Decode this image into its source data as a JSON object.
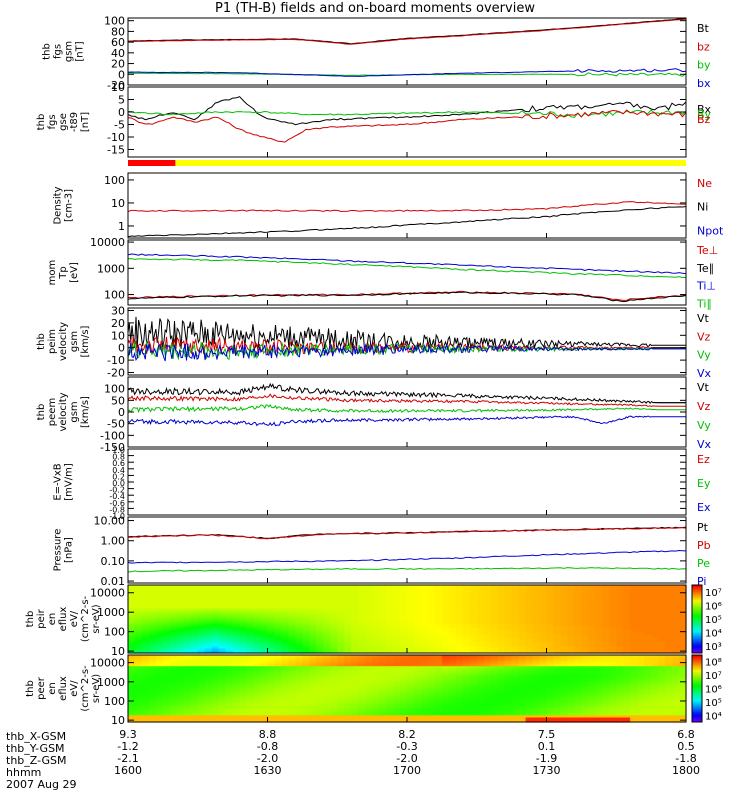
{
  "title": "P1 (TH-B) fields and on-board moments overview",
  "colors": {
    "black": "#000000",
    "red": "#d00000",
    "green": "#00c000",
    "blue": "#0000d0",
    "bar_red": "#ff0000",
    "bar_yellow": "#ffff00"
  },
  "chart_data": [
    {
      "type": "line",
      "ylabel": [
        "thb",
        "fgs",
        "gsm",
        "[nT]"
      ],
      "ylim": [
        -20,
        105
      ],
      "yticks": [
        "100",
        "80",
        "60",
        "40",
        "20",
        "0",
        "-20"
      ],
      "ytick_values": [
        100,
        80,
        60,
        40,
        20,
        0,
        -20
      ],
      "legend": [
        {
          "text": "Bt",
          "color": "black"
        },
        {
          "text": "bz",
          "color": "red"
        },
        {
          "text": "by",
          "color": "green"
        },
        {
          "text": "bx",
          "color": "blue"
        }
      ],
      "series": [
        {
          "name": "Bt",
          "color": "black",
          "x": [
            0,
            10,
            30,
            40,
            50,
            60,
            75,
            100
          ],
          "y": [
            62,
            64,
            66,
            57,
            67,
            73,
            83,
            104
          ]
        },
        {
          "name": "bz",
          "color": "red",
          "x": [
            0,
            10,
            30,
            40,
            50,
            60,
            75,
            100
          ],
          "y": [
            61,
            63,
            65,
            56,
            66,
            72,
            82,
            103
          ]
        },
        {
          "name": "by",
          "color": "green",
          "x": [
            0,
            20,
            40,
            60,
            80,
            100
          ],
          "y": [
            2,
            1,
            -2,
            0,
            0,
            -1
          ]
        },
        {
          "name": "bx",
          "color": "blue",
          "x": [
            0,
            20,
            40,
            60,
            80,
            100
          ],
          "y": [
            4,
            3,
            -4,
            2,
            6,
            8
          ]
        }
      ]
    },
    {
      "type": "line",
      "ylabel": [
        "thb",
        "fgs",
        "gse",
        "-t89",
        "[nT]"
      ],
      "ylim": [
        -18,
        10
      ],
      "yticks": [
        "10",
        "5",
        "0",
        "-5",
        "-10",
        "-15"
      ],
      "ytick_values": [
        10,
        5,
        0,
        -5,
        -10,
        -15
      ],
      "legend": [
        {
          "text": "Bx",
          "color": "black"
        },
        {
          "text": "By",
          "color": "green"
        },
        {
          "text": "Bz",
          "color": "red"
        }
      ],
      "series": [
        {
          "name": "Bx",
          "color": "black",
          "x": [
            0,
            3,
            8,
            12,
            16,
            20,
            24,
            30,
            36,
            50,
            60,
            70,
            80,
            90,
            95,
            100
          ],
          "y": [
            -1,
            -3,
            0,
            -3,
            4,
            6,
            -2,
            -5,
            -3,
            -2,
            -1,
            1,
            2,
            3,
            1,
            4
          ]
        },
        {
          "name": "By",
          "color": "green",
          "x": [
            0,
            8,
            16,
            24,
            32,
            40,
            60,
            80,
            100
          ],
          "y": [
            0,
            -1,
            0,
            0,
            -1,
            -1,
            0,
            -1,
            0
          ]
        },
        {
          "name": "Bz",
          "color": "red",
          "x": [
            0,
            2,
            4,
            8,
            12,
            16,
            20,
            24,
            28,
            32,
            36,
            50,
            60,
            70,
            80,
            90,
            100
          ],
          "y": [
            -2,
            -4,
            -5,
            -2,
            -4,
            -2,
            -7,
            -10,
            -12,
            -7,
            -6,
            -5,
            -3,
            -2,
            -1,
            0,
            -1
          ]
        }
      ]
    },
    {
      "type": "bar_strip",
      "segments": [
        {
          "x0": 0,
          "x1": 8.5,
          "color": "bar_red"
        },
        {
          "x0": 8.5,
          "x1": 100,
          "color": "bar_yellow"
        }
      ]
    },
    {
      "type": "line",
      "scale": "log",
      "ylabel": [
        "Density",
        "[cm-3]"
      ],
      "ylim": [
        0.3,
        200
      ],
      "yticks": [
        "100",
        "10",
        "1"
      ],
      "ytick_values": [
        100,
        10,
        1
      ],
      "legend": [
        {
          "text": "Ne",
          "color": "red"
        },
        {
          "text": "Ni",
          "color": "black"
        },
        {
          "text": "Npot",
          "color": "blue"
        }
      ],
      "series": [
        {
          "name": "Ne",
          "color": "red",
          "x": [
            0,
            20,
            40,
            60,
            75,
            85,
            90,
            100
          ],
          "y": [
            4.5,
            4.7,
            4.5,
            4.7,
            5.5,
            9,
            11,
            9
          ]
        },
        {
          "name": "Ni",
          "color": "black",
          "x": [
            0,
            15,
            30,
            45,
            60,
            75,
            90,
            100
          ],
          "y": [
            0.35,
            0.45,
            0.6,
            0.9,
            1.5,
            2.5,
            5,
            7
          ]
        }
      ]
    },
    {
      "type": "line",
      "scale": "log",
      "ylabel": [
        "mom",
        "Tp",
        "[eV]"
      ],
      "ylim": [
        40,
        12000
      ],
      "yticks": [
        "10000",
        "1000",
        "100"
      ],
      "ytick_values": [
        10000,
        1000,
        100
      ],
      "legend": [
        {
          "text": "Te⊥",
          "color": "red"
        },
        {
          "text": "Te∥",
          "color": "black"
        },
        {
          "text": "Ti⊥",
          "color": "blue"
        },
        {
          "text": "Ti∥",
          "color": "green"
        }
      ],
      "series": [
        {
          "name": "Ti⊥",
          "color": "blue",
          "x": [
            0,
            20,
            40,
            60,
            80,
            100
          ],
          "y": [
            3400,
            2700,
            1900,
            1300,
            900,
            650
          ]
        },
        {
          "name": "Ti∥",
          "color": "green",
          "x": [
            0,
            20,
            40,
            60,
            80,
            100
          ],
          "y": [
            2300,
            2000,
            1400,
            900,
            620,
            450
          ]
        },
        {
          "name": "Te⊥",
          "color": "red",
          "x": [
            0,
            10,
            20,
            40,
            60,
            80,
            88,
            95,
            100
          ],
          "y": [
            75,
            85,
            95,
            100,
            125,
            105,
            60,
            80,
            95
          ]
        },
        {
          "name": "Te∥",
          "color": "black",
          "x": [
            0,
            10,
            20,
            40,
            60,
            80,
            88,
            95,
            100
          ],
          "y": [
            70,
            80,
            90,
            95,
            120,
            100,
            55,
            75,
            90
          ]
        }
      ]
    },
    {
      "type": "line",
      "ylabel": [
        "thb",
        "peim",
        "velocity",
        "gsm",
        "[km/s]"
      ],
      "ylim": [
        -22,
        32
      ],
      "yticks": [
        "30",
        "20",
        "10",
        "0",
        "-10",
        "-20"
      ],
      "ytick_values": [
        30,
        20,
        10,
        0,
        -10,
        -20
      ],
      "legend": [
        {
          "text": "Vt",
          "color": "black"
        },
        {
          "text": "Vz",
          "color": "red"
        },
        {
          "text": "Vy",
          "color": "green"
        },
        {
          "text": "Vx",
          "color": "blue"
        }
      ],
      "series": [
        {
          "name": "Vt",
          "color": "black",
          "x": [
            0,
            20,
            40,
            60,
            80,
            94,
            100
          ],
          "y": [
            12,
            11,
            6,
            4,
            3,
            2,
            2
          ]
        },
        {
          "name": "Vz",
          "color": "red",
          "x": [
            0,
            20,
            40,
            60,
            80,
            94,
            100
          ],
          "y": [
            2,
            1,
            0,
            0,
            0,
            0,
            0
          ]
        },
        {
          "name": "Vy",
          "color": "green",
          "x": [
            0,
            20,
            40,
            60,
            80,
            94,
            100
          ],
          "y": [
            -2,
            -3,
            -1,
            -1,
            -1,
            -1,
            -1
          ]
        },
        {
          "name": "Vx",
          "color": "blue",
          "x": [
            0,
            20,
            40,
            60,
            80,
            94,
            100
          ],
          "y": [
            -3,
            -4,
            -2,
            -1,
            -1,
            -1,
            -1
          ]
        }
      ]
    },
    {
      "type": "line",
      "ylabel": [
        "thb",
        "peem",
        "velocity",
        "gsm",
        "[km/s]"
      ],
      "ylim": [
        -150,
        150
      ],
      "yticks": [
        "100",
        "50",
        "0",
        "-50",
        "-100",
        "-150"
      ],
      "ytick_values": [
        100,
        50,
        0,
        -50,
        -100,
        -150
      ],
      "legend": [
        {
          "text": "Vt",
          "color": "black"
        },
        {
          "text": "Vz",
          "color": "red"
        },
        {
          "text": "Vy",
          "color": "green"
        },
        {
          "text": "Vx",
          "color": "blue"
        }
      ],
      "series": [
        {
          "name": "Vt",
          "color": "black",
          "x": [
            0,
            20,
            25,
            30,
            40,
            60,
            80,
            90,
            95,
            100
          ],
          "y": [
            90,
            85,
            110,
            95,
            80,
            70,
            55,
            45,
            40,
            40
          ]
        },
        {
          "name": "Vz",
          "color": "red",
          "x": [
            0,
            20,
            25,
            30,
            40,
            60,
            80,
            90,
            95,
            100
          ],
          "y": [
            60,
            55,
            70,
            60,
            50,
            45,
            35,
            30,
            25,
            25
          ]
        },
        {
          "name": "Vy",
          "color": "green",
          "x": [
            0,
            20,
            25,
            30,
            40,
            60,
            80,
            90,
            95,
            100
          ],
          "y": [
            10,
            15,
            25,
            10,
            5,
            5,
            10,
            15,
            10,
            10
          ]
        },
        {
          "name": "Vx",
          "color": "blue",
          "x": [
            0,
            20,
            25,
            30,
            40,
            60,
            80,
            85,
            90,
            95,
            100
          ],
          "y": [
            -40,
            -45,
            -55,
            -40,
            -35,
            -30,
            -20,
            -50,
            -20,
            -20,
            -20
          ]
        }
      ]
    },
    {
      "type": "line",
      "ylabel": [
        "E=-VxB",
        "[mV/m]"
      ],
      "ylim": [
        -1,
        1
      ],
      "yticks": [
        "1.0",
        "0.8",
        "0.6",
        "0.4",
        "0.2",
        "0.0",
        "-0.2",
        "-0.4",
        "-0.6",
        "-0.8",
        "-1.0"
      ],
      "ytick_values": [
        1,
        0.8,
        0.6,
        0.4,
        0.2,
        0,
        -0.2,
        -0.4,
        -0.6,
        -0.8,
        -1
      ],
      "legend": [
        {
          "text": "Ez",
          "color": "red"
        },
        {
          "text": "Ey",
          "color": "green"
        },
        {
          "text": "Ex",
          "color": "blue"
        }
      ],
      "series": []
    },
    {
      "type": "line",
      "scale": "log",
      "ylabel": [
        "Pressure",
        "[nPa]"
      ],
      "ylim": [
        0.008,
        15
      ],
      "yticks": [
        "10.00",
        "1.00",
        "0.10",
        "0.01"
      ],
      "ytick_values": [
        10,
        1,
        0.1,
        0.01
      ],
      "legend": [
        {
          "text": "Pt",
          "color": "black"
        },
        {
          "text": "Pb",
          "color": "red"
        },
        {
          "text": "Pe",
          "color": "green"
        },
        {
          "text": "Pi",
          "color": "blue"
        }
      ],
      "series": [
        {
          "name": "Pt",
          "color": "black",
          "x": [
            0,
            15,
            25,
            35,
            50,
            70,
            100
          ],
          "y": [
            1.6,
            2.0,
            1.3,
            2.2,
            2.5,
            3.2,
            4.5
          ]
        },
        {
          "name": "Pb",
          "color": "red",
          "x": [
            0,
            15,
            25,
            35,
            50,
            70,
            100
          ],
          "y": [
            1.5,
            1.9,
            1.25,
            2.1,
            2.4,
            3.1,
            4.4
          ]
        },
        {
          "name": "Pi",
          "color": "blue",
          "x": [
            0,
            20,
            40,
            60,
            80,
            100
          ],
          "y": [
            0.08,
            0.09,
            0.1,
            0.14,
            0.22,
            0.32
          ]
        },
        {
          "name": "Pe",
          "color": "green",
          "x": [
            0,
            20,
            40,
            60,
            80,
            100
          ],
          "y": [
            0.03,
            0.035,
            0.04,
            0.04,
            0.045,
            0.04
          ]
        }
      ]
    },
    {
      "type": "heatmap",
      "ylabel": [
        "thb",
        "peir",
        "en",
        "eflux",
        "eV/",
        "(cm^2-s-",
        "sr-eV)"
      ],
      "scale": "log",
      "ylim": [
        8,
        25000
      ],
      "yticks": [
        "10000",
        "1000",
        "100",
        "10"
      ],
      "ytick_values": [
        10000,
        1000,
        100,
        10
      ],
      "colorbar": {
        "ticks": [
          "10⁷",
          "10⁶",
          "10⁵",
          "10⁴",
          "10³"
        ],
        "tick_values": [
          7,
          6,
          5,
          4,
          3
        ],
        "range": [
          2.5,
          7.5
        ]
      }
    },
    {
      "type": "heatmap",
      "ylabel": [
        "thb",
        "peer",
        "en",
        "eflux",
        "eV/",
        "(cm^2-s-",
        "sr-eV)"
      ],
      "scale": "log",
      "ylim": [
        8,
        25000
      ],
      "yticks": [
        "10000",
        "1000",
        "100",
        "10"
      ],
      "ytick_values": [
        10000,
        1000,
        100,
        10
      ],
      "colorbar": {
        "ticks": [
          "10⁸",
          "10⁷",
          "10⁶",
          "10⁵",
          "10⁴"
        ],
        "tick_values": [
          8,
          7,
          6,
          5,
          4
        ],
        "range": [
          3.5,
          8.5
        ]
      }
    }
  ],
  "ephemeris": {
    "labels": [
      "thb_X-GSM",
      "thb_Y-GSM",
      "thb_Z-GSM",
      "hhmm",
      "2007 Aug 29"
    ],
    "rows": [
      [
        "9.3",
        "8.8",
        "8.2",
        "7.5",
        "6.8"
      ],
      [
        "-1.2",
        "-0.8",
        "-0.3",
        "0.1",
        "0.5"
      ],
      [
        "-2.1",
        "-2.0",
        "-2.0",
        "-1.9",
        "-1.8"
      ],
      [
        "1600",
        "1630",
        "1700",
        "1730",
        "1800"
      ]
    ]
  }
}
